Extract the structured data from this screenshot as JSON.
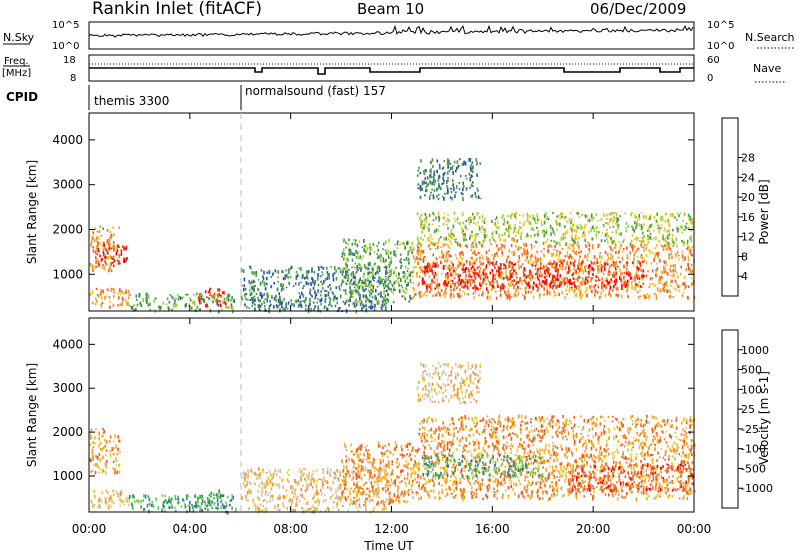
{
  "header": {
    "station": "Rankin Inlet (fitACF)",
    "beam": "Beam 10",
    "date": "06/Dec/2009"
  },
  "nsky_panel": {
    "left_label": "N.Sky",
    "left_ticks": [
      "10^5",
      "10^0"
    ],
    "right_label": "N.Search",
    "right_ticks": [
      "10^5",
      "10^0"
    ]
  },
  "freq_panel": {
    "left_label_1": "Freq.",
    "left_label_2": "[MHz]",
    "left_ticks": [
      "18",
      "8"
    ],
    "right_label": "Nave",
    "right_ticks": [
      "60",
      "0"
    ]
  },
  "cpid_panel": {
    "label": "CPID",
    "modes": [
      {
        "name": "themis 3300",
        "start_hour": 0
      },
      {
        "name": "normalsound (fast) 157",
        "start_hour": 6
      }
    ]
  },
  "chart_data": [
    {
      "type": "heatmap",
      "name": "power",
      "xlabel": "Time UT",
      "ylabel": "Slant Range [km]",
      "xlim": [
        0,
        24
      ],
      "ylim": [
        180,
        4600
      ],
      "x_ticks": [
        "00:00",
        "04:00",
        "08:00",
        "12:00",
        "16:00",
        "20:00",
        "00:00"
      ],
      "y_ticks": [
        1000,
        2000,
        3000,
        4000
      ],
      "colorbar": {
        "label": "Power [dB]",
        "ticks": [
          "4",
          "8",
          "12",
          "16",
          "20",
          "24",
          "28"
        ],
        "colors": [
          "#0000ff",
          "#2050b0",
          "#3e7c5e",
          "#46a03e",
          "#a0d030",
          "#f0c020",
          "#f09028",
          "#f05a20",
          "#ff0000"
        ]
      },
      "regions": [
        {
          "t": [
            0.0,
            1.2
          ],
          "r": [
            1100,
            2100
          ],
          "level": 6
        },
        {
          "t": [
            0.0,
            1.6
          ],
          "r": [
            300,
            700
          ],
          "level": 6
        },
        {
          "t": [
            0.3,
            1.5
          ],
          "r": [
            1200,
            1700
          ],
          "level": 8
        },
        {
          "t": [
            1.5,
            5.8
          ],
          "r": [
            200,
            600
          ],
          "level": 3
        },
        {
          "t": [
            4.2,
            5.4
          ],
          "r": [
            300,
            700
          ],
          "level": 7
        },
        {
          "t": [
            6.0,
            12.0
          ],
          "r": [
            200,
            1200
          ],
          "level": 2
        },
        {
          "t": [
            10.0,
            12.8
          ],
          "r": [
            400,
            1800
          ],
          "level": 3
        },
        {
          "t": [
            12.8,
            24.0
          ],
          "r": [
            500,
            1700
          ],
          "level": 6
        },
        {
          "t": [
            13.2,
            22.0
          ],
          "r": [
            700,
            1300
          ],
          "level": 8
        },
        {
          "t": [
            13.0,
            15.5
          ],
          "r": [
            2700,
            3600
          ],
          "level": 2
        },
        {
          "t": [
            13.0,
            24.0
          ],
          "r": [
            1700,
            2400
          ],
          "level": 4
        }
      ]
    },
    {
      "type": "heatmap",
      "name": "velocity",
      "xlabel": "Time UT",
      "ylabel": "Slant Range [km]",
      "xlim": [
        0,
        24
      ],
      "ylim": [
        180,
        4600
      ],
      "x_ticks": [
        "00:00",
        "04:00",
        "08:00",
        "12:00",
        "16:00",
        "20:00",
        "00:00"
      ],
      "y_ticks": [
        1000,
        2000,
        3000,
        4000
      ],
      "colorbar": {
        "label": "Velocity [m s-1]",
        "ticks": [
          "1000",
          "500",
          "100",
          "25",
          "-25",
          "-100",
          "-500",
          "-1000"
        ],
        "colors": [
          "#1030c0",
          "#2e7890",
          "#3aa050",
          "#66d040",
          "#c8c8c8",
          "#f0c020",
          "#f09028",
          "#f05a20",
          "#ff0000"
        ]
      },
      "regions": [
        {
          "t": [
            0.0,
            1.2
          ],
          "r": [
            1100,
            2100
          ],
          "level": 6
        },
        {
          "t": [
            0.0,
            1.6
          ],
          "r": [
            300,
            700
          ],
          "level": 5
        },
        {
          "t": [
            1.5,
            5.8
          ],
          "r": [
            200,
            600
          ],
          "level": 2
        },
        {
          "t": [
            4.2,
            5.4
          ],
          "r": [
            300,
            700
          ],
          "level": 2
        },
        {
          "t": [
            6.0,
            12.0
          ],
          "r": [
            200,
            1200
          ],
          "level": 5
        },
        {
          "t": [
            10.0,
            12.8
          ],
          "r": [
            400,
            1800
          ],
          "level": 6
        },
        {
          "t": [
            12.8,
            24.0
          ],
          "r": [
            500,
            1700
          ],
          "level": 6
        },
        {
          "t": [
            13.2,
            18.0
          ],
          "r": [
            1000,
            1500
          ],
          "level": 2
        },
        {
          "t": [
            13.0,
            15.5
          ],
          "r": [
            2700,
            3600
          ],
          "level": 5
        },
        {
          "t": [
            13.0,
            24.0
          ],
          "r": [
            1700,
            2400
          ],
          "level": 6
        },
        {
          "t": [
            19.0,
            24.0
          ],
          "r": [
            700,
            1300
          ],
          "level": 7
        }
      ]
    }
  ]
}
